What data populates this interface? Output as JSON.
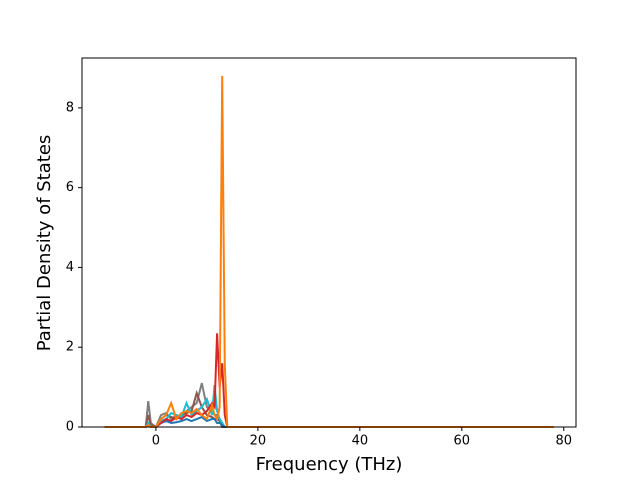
{
  "chart_data": {
    "type": "line",
    "xlabel": "Frequency (THz)",
    "ylabel": "Partial Density of States",
    "x": [
      -10,
      -2,
      -1.5,
      -1,
      0,
      1,
      2,
      3,
      4,
      5,
      6,
      7,
      8,
      9,
      10,
      11,
      11.5,
      12,
      12.5,
      13,
      13.5,
      14,
      20,
      78
    ],
    "series": [
      {
        "color": "#7f7f7f",
        "values": [
          0,
          0,
          0.65,
          0.1,
          0,
          0.3,
          0.35,
          0.2,
          0.3,
          0.25,
          0.4,
          0.5,
          0.6,
          1.1,
          0.5,
          0.4,
          0.3,
          0.3,
          0.2,
          0.1,
          0,
          0,
          0,
          0
        ]
      },
      {
        "color": "#8c564b",
        "values": [
          0,
          0,
          0.3,
          0.05,
          0,
          0.2,
          0.3,
          0.25,
          0.2,
          0.3,
          0.35,
          0.4,
          0.85,
          0.5,
          0.3,
          0.25,
          0.2,
          0.2,
          0.15,
          0,
          0,
          0,
          0,
          0
        ]
      },
      {
        "color": "#17becf",
        "values": [
          0,
          0,
          0.1,
          0,
          0,
          0.15,
          0.2,
          0.35,
          0.3,
          0.25,
          0.6,
          0.3,
          0.4,
          0.5,
          0.7,
          0.3,
          1.05,
          0.4,
          0.2,
          0.1,
          0,
          0,
          0,
          0
        ]
      },
      {
        "color": "#1f77b4",
        "values": [
          0,
          0,
          0.02,
          0,
          0,
          0.1,
          0.15,
          0.1,
          0.12,
          0.15,
          0.2,
          0.15,
          0.2,
          0.25,
          0.15,
          0.2,
          0.2,
          0.1,
          0.1,
          0.05,
          0,
          0,
          0,
          0
        ]
      },
      {
        "color": "#d62728",
        "values": [
          0,
          0,
          0.05,
          0,
          0,
          0.1,
          0.2,
          0.15,
          0.25,
          0.2,
          0.3,
          0.25,
          0.35,
          0.3,
          0.4,
          0.6,
          0.5,
          2.35,
          1.0,
          1.6,
          0.3,
          0,
          0,
          0
        ]
      },
      {
        "color": "#ff7f0e",
        "values": [
          0,
          0,
          0.05,
          0,
          0,
          0.2,
          0.3,
          0.6,
          0.2,
          0.35,
          0.4,
          0.35,
          0.45,
          0.3,
          0.2,
          0.55,
          0.3,
          0.2,
          0.5,
          8.8,
          1.6,
          0,
          0,
          0
        ]
      }
    ],
    "xlim": [
      -14.5,
      82.4
    ],
    "xticks": [
      0,
      20,
      40,
      60,
      80
    ],
    "ylim": [
      0,
      9.25
    ],
    "yticks": [
      0,
      2,
      4,
      6,
      8
    ]
  }
}
